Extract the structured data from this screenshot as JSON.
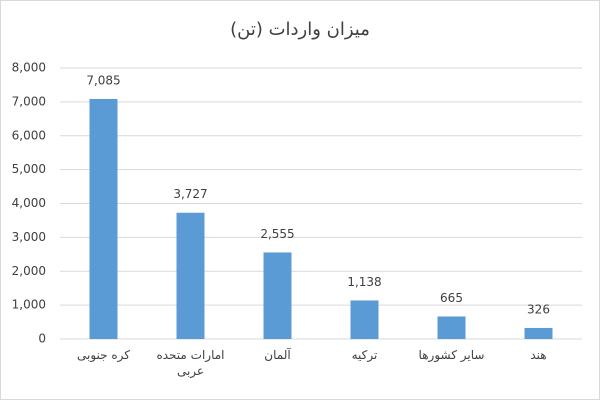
{
  "chart_data": {
    "type": "bar",
    "title": "میزان واردات (تن)",
    "categories": [
      "کره جنوبی",
      "امارات متحده عربی",
      "آلمان",
      "ترکیه",
      "سایر کشورها",
      "هند"
    ],
    "values": [
      7085,
      3727,
      2555,
      1138,
      665,
      326
    ],
    "value_labels": [
      "7,085",
      "3,727",
      "2,555",
      "1,138",
      "665",
      "326"
    ],
    "color": "#5b9bd5",
    "ylim": [
      0,
      8000
    ],
    "yticks": [
      0,
      {
        "value": 1000,
        "label": "1,000"
      },
      {
        "value": 2000,
        "label": "2,000"
      },
      {
        "value": 3000,
        "label": "3,000"
      },
      {
        "value": 4000,
        "label": "4,000"
      },
      {
        "value": 5000,
        "label": "5,000"
      },
      {
        "value": 6000,
        "label": "6,000"
      },
      {
        "value": 7000,
        "label": "7,000"
      },
      {
        "value": 8000,
        "label": "8,000"
      }
    ],
    "grid": true
  }
}
